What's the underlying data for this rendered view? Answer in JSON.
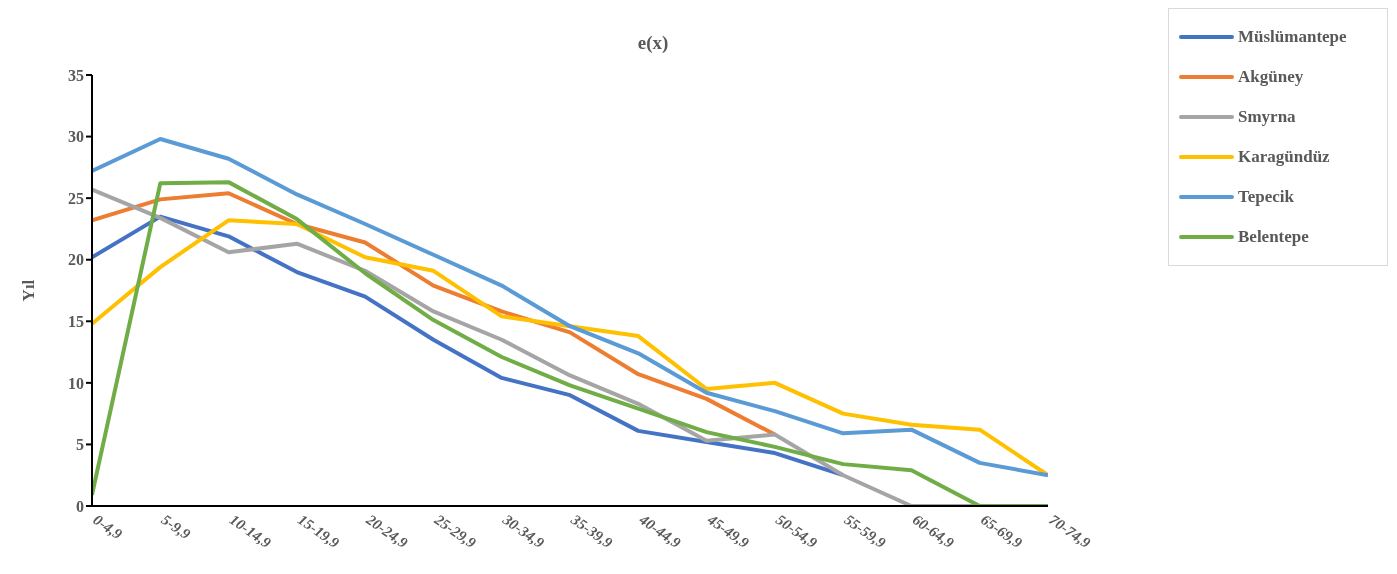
{
  "chart_data": {
    "type": "line",
    "title": "e(x)",
    "ylabel": "Yıl",
    "categories": [
      "0-4,9",
      "5-9,9",
      "10-14,9",
      "15-19,9",
      "20-24,9",
      "25-29,9",
      "30-34,9",
      "35-39,9",
      "40-44,9",
      "45-49,9",
      "50-54,9",
      "55-59,9",
      "60-64,9",
      "65-69,9",
      "70-74,9"
    ],
    "series": [
      {
        "name": "Müslümantepe",
        "color": "#4472c4",
        "values": [
          20.2,
          23.5,
          21.9,
          19.0,
          17.0,
          13.5,
          10.4,
          9.0,
          6.1,
          5.2,
          4.3,
          2.5,
          null,
          null,
          null
        ]
      },
      {
        "name": "Akgüney",
        "color": "#ed7d31",
        "values": [
          23.2,
          24.9,
          25.4,
          22.9,
          21.4,
          17.9,
          15.8,
          14.1,
          10.7,
          8.7,
          5.8,
          null,
          null,
          null,
          null
        ]
      },
      {
        "name": "Smyrna",
        "color": "#a5a5a5",
        "values": [
          25.7,
          23.4,
          20.6,
          21.3,
          19.1,
          15.8,
          13.5,
          10.6,
          8.3,
          5.3,
          5.8,
          2.5,
          0,
          0,
          null
        ]
      },
      {
        "name": "Karagündüz",
        "color": "#ffc000",
        "values": [
          14.8,
          19.4,
          23.2,
          22.9,
          20.2,
          19.1,
          15.4,
          14.6,
          13.8,
          9.5,
          10.0,
          7.5,
          6.6,
          6.2,
          2.5
        ]
      },
      {
        "name": "Tepecik",
        "color": "#5b9bd5",
        "values": [
          27.2,
          29.8,
          28.2,
          25.3,
          22.9,
          20.4,
          17.9,
          14.6,
          12.4,
          9.2,
          7.7,
          5.9,
          6.2,
          3.5,
          2.5
        ]
      },
      {
        "name": "Belentepe",
        "color": "#70ad47",
        "values": [
          0.9,
          26.2,
          26.3,
          23.3,
          18.9,
          15.1,
          12.1,
          9.8,
          7.9,
          6.0,
          4.8,
          3.4,
          2.9,
          0,
          0
        ]
      }
    ],
    "ylim": [
      0,
      35
    ],
    "yticks": [
      0,
      5,
      10,
      15,
      20,
      25,
      30,
      35
    ],
    "grid": false,
    "legend": "top right",
    "marker": "none",
    "line_style": "solid"
  }
}
